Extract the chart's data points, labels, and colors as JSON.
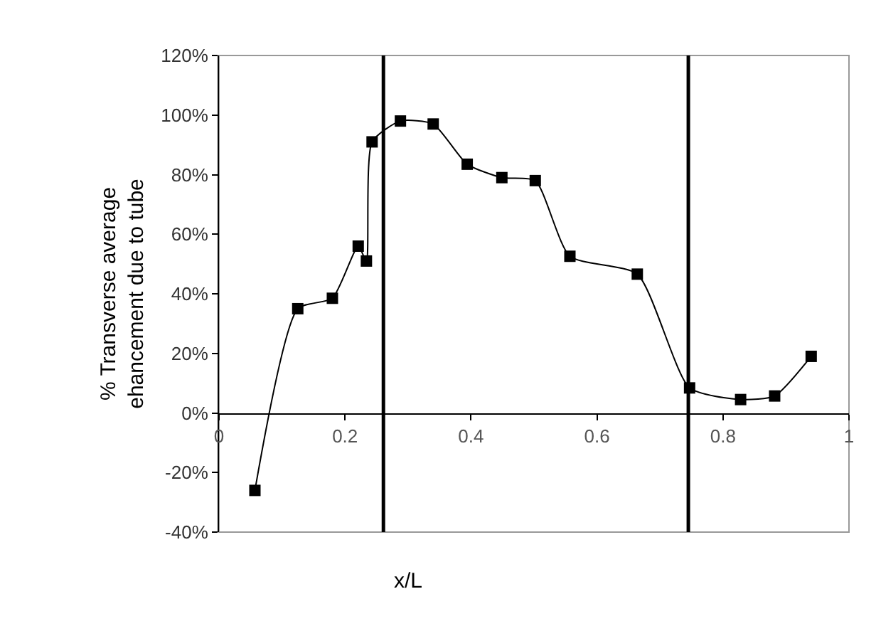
{
  "chart_data": {
    "type": "line",
    "xlabel": "x/L",
    "ylabel": "% Transverse average\nehancement due to tube",
    "x": [
      0.057,
      0.125,
      0.18,
      0.221,
      0.234,
      0.243,
      0.288,
      0.34,
      0.394,
      0.449,
      0.502,
      0.557,
      0.664,
      0.747,
      0.828,
      0.882,
      0.94
    ],
    "series": [
      {
        "color": "#000000",
        "values": [
          -26,
          35,
          38.5,
          56,
          51,
          91,
          98,
          97,
          83.5,
          79,
          78,
          52.6,
          46.6,
          8.4,
          4.5,
          5.7,
          19
        ]
      }
    ],
    "marker": "square",
    "line_style": "solid",
    "grid": false,
    "legend": false,
    "xlim": [
      0,
      1
    ],
    "xticks": [
      0,
      0.2,
      0.4,
      0.6,
      0.8,
      1
    ],
    "ylim": [
      -40,
      120
    ],
    "yticks": [
      {
        "value": -40,
        "label": "-40%"
      },
      {
        "value": -20,
        "label": "-20%"
      },
      {
        "value": 0,
        "label": "0%"
      },
      {
        "value": 20,
        "label": "20%"
      },
      {
        "value": 40,
        "label": "40%"
      },
      {
        "value": 60,
        "label": "60%"
      },
      {
        "value": 80,
        "label": "80%"
      },
      {
        "value": 100,
        "label": "100%"
      },
      {
        "value": 120,
        "label": "120%"
      }
    ],
    "ref_lines": [
      {
        "axis": "x",
        "value": 0.261,
        "color": "#000000"
      },
      {
        "axis": "x",
        "value": 0.745,
        "color": "#000000"
      }
    ]
  }
}
